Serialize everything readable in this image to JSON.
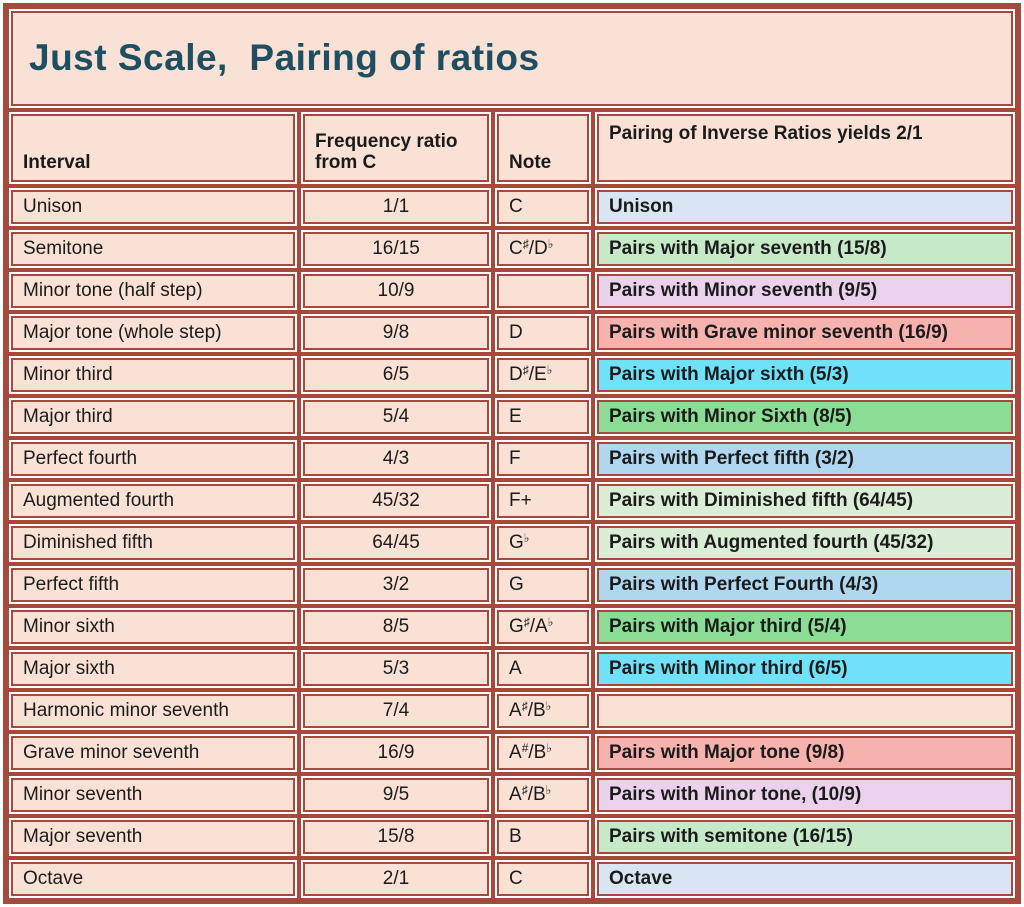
{
  "title": "Just Scale,  Pairing of ratios",
  "colors": {
    "frame_border": "#A6483B",
    "cell_fill": "#FAE1D5",
    "cell_outline_white": "#ffffff",
    "title_text": "#1D4E61",
    "body_text": "#1b1b1b",
    "pairing_light_blue": "#D9E5F3",
    "pairing_light_green": "#C6EAC8",
    "pairing_violet": "#EBD2EC",
    "pairing_salmon": "#F8B2AE",
    "pairing_cyan": "#6FE1F9",
    "pairing_green": "#8BDC95",
    "pairing_sky_blue": "#AFD8F0",
    "pairing_pale_green": "#DAEDD6"
  },
  "chart_data": {
    "type": "table",
    "title": "Just Scale,  Pairing of ratios",
    "columns": [
      "Interval",
      "Frequency ratio from C",
      "Note",
      "Pairing of Inverse Ratios yields 2/1"
    ],
    "rows": [
      {
        "interval": "Unison",
        "ratio": "1/1",
        "note": "C",
        "pairing": "Unison",
        "pairing_bg": "#D9E5F3"
      },
      {
        "interval": "Semitone",
        "ratio": "16/15",
        "note": "C♯ /D♭",
        "pairing": "Pairs with Major seventh (15/8)",
        "pairing_bg": "#C6EAC8"
      },
      {
        "interval": "Minor tone (half step)",
        "ratio": "10/9",
        "note": "",
        "pairing": "Pairs with Minor seventh (9/5)",
        "pairing_bg": "#EBD2EC"
      },
      {
        "interval": "Major tone (whole step)",
        "ratio": "9/8",
        "note": "D",
        "pairing": "Pairs with Grave minor seventh (16/9)",
        "pairing_bg": "#F8B2AE"
      },
      {
        "interval": "Minor third",
        "ratio": "6/5",
        "note": "D♯ /E♭",
        "pairing": "Pairs with Major sixth (5/3)",
        "pairing_bg": "#6FE1F9"
      },
      {
        "interval": "Major third",
        "ratio": "5/4",
        "note": "E",
        "pairing": "Pairs with Minor Sixth (8/5)",
        "pairing_bg": "#8BDC95"
      },
      {
        "interval": "Perfect fourth",
        "ratio": "4/3",
        "note": "F",
        "pairing": "Pairs with Perfect fifth (3/2)",
        "pairing_bg": "#AFD8F0"
      },
      {
        "interval": "Augmented fourth",
        "ratio": "45/32",
        "note": "F+",
        "pairing": "Pairs with Diminished fifth (64/45)",
        "pairing_bg": "#DAEDD6"
      },
      {
        "interval": "Diminished fifth",
        "ratio": "64/45",
        "note": "G♭",
        "pairing": "Pairs with Augmented fourth (45/32)",
        "pairing_bg": "#DAEDD6"
      },
      {
        "interval": "Perfect fifth",
        "ratio": "3/2",
        "note": "G",
        "pairing": "Pairs with Perfect Fourth (4/3)",
        "pairing_bg": "#AFD8F0"
      },
      {
        "interval": "Minor sixth",
        "ratio": "8/5",
        "note": "G♯ /A♭",
        "pairing": "Pairs with Major third (5/4)",
        "pairing_bg": "#8BDC95"
      },
      {
        "interval": "Major sixth",
        "ratio": "5/3",
        "note": "A",
        "pairing": "Pairs with Minor third (6/5)",
        "pairing_bg": "#6FE1F9"
      },
      {
        "interval": "Harmonic minor seventh",
        "ratio": "7/4",
        "note": "A♯ /B♭",
        "pairing": "",
        "pairing_bg": "#FAE1D5"
      },
      {
        "interval": "Grave minor seventh",
        "ratio": "16/9",
        "note": "A# /B♭",
        "pairing": "Pairs with Major tone (9/8)",
        "pairing_bg": "#F8B2AE"
      },
      {
        "interval": "Minor seventh",
        "ratio": "9/5",
        "note": "A♯ /B♭",
        "pairing": "Pairs with Minor tone, (10/9)",
        "pairing_bg": "#EBD2EC"
      },
      {
        "interval": "Major seventh",
        "ratio": "15/8",
        "note": "B",
        "pairing": "Pairs with semitone (16/15)",
        "pairing_bg": "#C6EAC8"
      },
      {
        "interval": "Octave",
        "ratio": "2/1",
        "note": "C",
        "pairing": "Octave",
        "pairing_bg": "#D9E5F3"
      }
    ]
  }
}
